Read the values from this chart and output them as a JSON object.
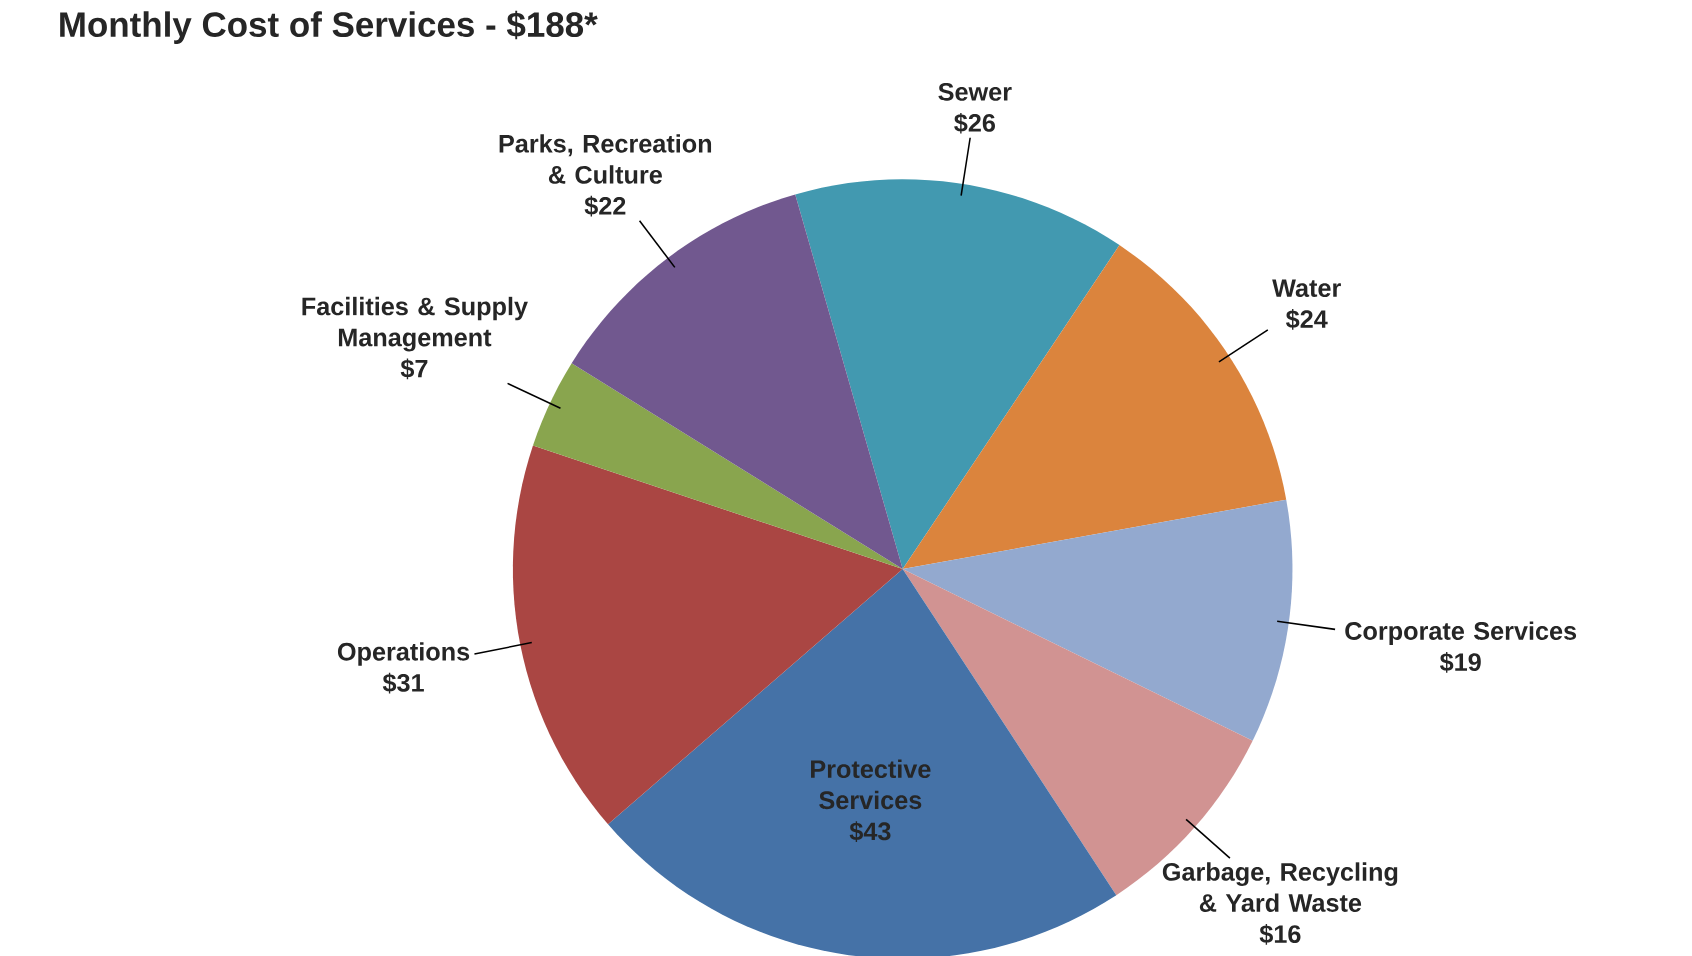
{
  "chart_data": {
    "type": "pie",
    "title": "Monthly Cost of Services - $188*",
    "categories": [
      "Sewer",
      "Water",
      "Corporate Services",
      "Garbage, Recycling & Yard Waste",
      "Protective Services",
      "Operations",
      "Facilities & Supply Management",
      "Parks, Recreation & Culture"
    ],
    "values": [
      26,
      24,
      19,
      16,
      43,
      31,
      7,
      22
    ],
    "value_labels": [
      "$26",
      "$24",
      "$19",
      "$16",
      "$43",
      "$31",
      "$7",
      "$22"
    ],
    "colors": [
      "#4299b0",
      "#db843d",
      "#93a9cf",
      "#d19392",
      "#4572a7",
      "#aa4643",
      "#89a54e",
      "#71588f"
    ]
  }
}
